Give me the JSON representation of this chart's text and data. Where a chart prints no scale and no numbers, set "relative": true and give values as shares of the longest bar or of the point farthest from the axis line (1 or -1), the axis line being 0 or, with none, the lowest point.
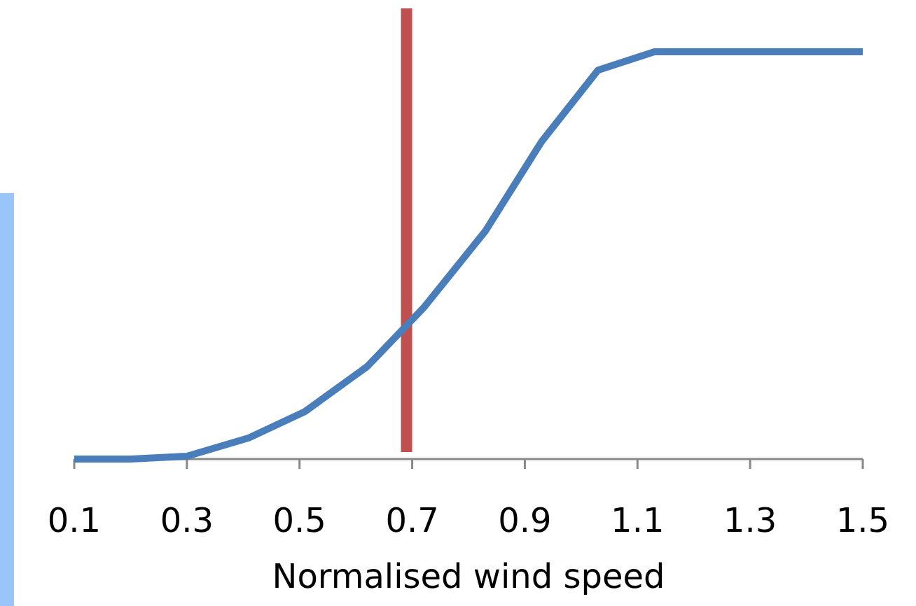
{
  "chart_data": {
    "type": "line",
    "xlabel": "Normalised wind speed",
    "relative": true,
    "xlim": [
      0.1,
      1.5
    ],
    "xticks": [
      0.1,
      0.3,
      0.5,
      0.7,
      0.9,
      1.1,
      1.3,
      1.5
    ],
    "series": [
      {
        "color": "#4a7ebb",
        "x": [
          0.1,
          0.2,
          0.3,
          0.41,
          0.51,
          0.62,
          0.72,
          0.83,
          0.93,
          1.03,
          1.13,
          1.5
        ],
        "values": [
          0,
          0,
          0.007,
          0.052,
          0.117,
          0.227,
          0.371,
          0.56,
          0.78,
          0.955,
          1,
          1
        ]
      }
    ],
    "ref_lines": [
      {
        "axis": "x",
        "value": 0.69,
        "color": "#c0504d"
      }
    ],
    "grid": false,
    "marker": "none",
    "line_style": "solid"
  }
}
